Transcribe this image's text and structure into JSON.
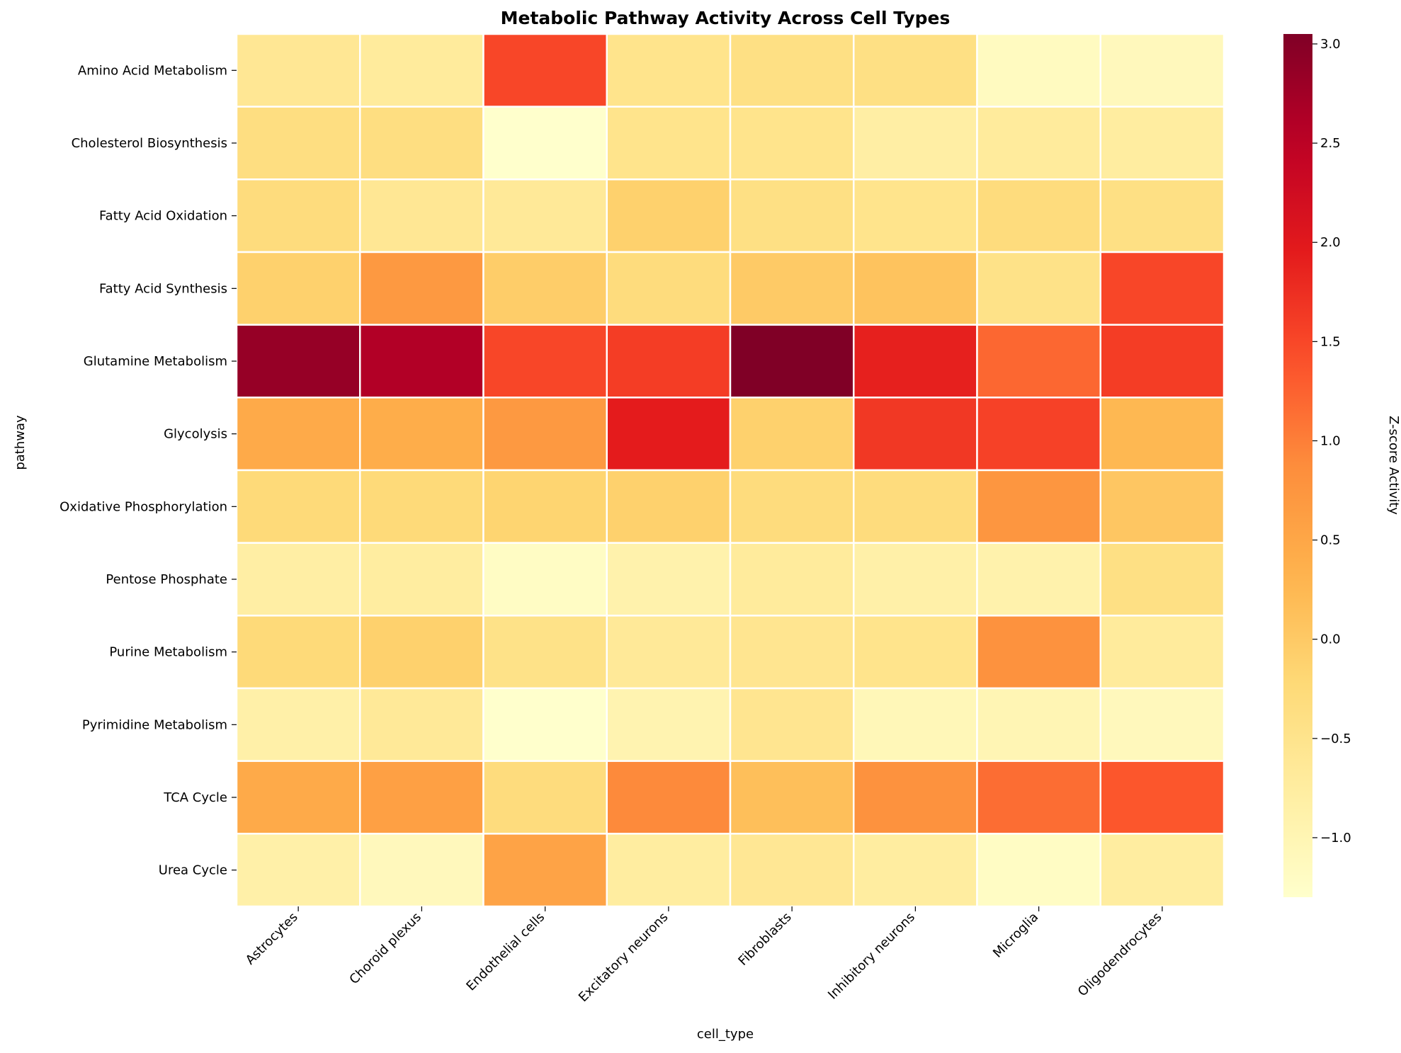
{
  "chart_data": {
    "type": "heatmap",
    "title": "Metabolic Pathway Activity Across Cell Types",
    "xlabel": "cell_type",
    "ylabel": "pathway",
    "colorbar_label": "Z-score Activity",
    "colormap": "YlOrRd",
    "color_range": [
      -1.3,
      3.05
    ],
    "colorbar_ticks": [
      3.0,
      2.5,
      2.0,
      1.5,
      1.0,
      0.5,
      0.0,
      -0.5,
      -1.0
    ],
    "colorbar_tick_labels": [
      "3.0",
      "2.5",
      "2.0",
      "1.5",
      "1.0",
      "0.5",
      "0.0",
      "−0.5",
      "−1.0"
    ],
    "x_categories": [
      "Astrocytes",
      "Choroid plexus",
      "Endothelial cells",
      "Excitatory neurons",
      "Fibroblasts",
      "Inhibitory neurons",
      "Microglia",
      "Oligodendrocytes"
    ],
    "y_categories": [
      "Amino Acid Metabolism",
      "Cholesterol Biosynthesis",
      "Fatty Acid Oxidation",
      "Fatty Acid Synthesis",
      "Glutamine Metabolism",
      "Glycolysis",
      "Oxidative Phosphorylation",
      "Pentose Phosphate",
      "Purine Metabolism",
      "Pyrimidine Metabolism",
      "TCA Cycle",
      "Urea Cycle"
    ],
    "values": [
      [
        -0.6,
        -0.7,
        1.5,
        -0.5,
        -0.4,
        -0.4,
        -1.15,
        -1.1
      ],
      [
        -0.35,
        -0.35,
        -1.3,
        -0.5,
        -0.5,
        -0.8,
        -0.7,
        -0.75
      ],
      [
        -0.3,
        -0.6,
        -0.65,
        -0.1,
        -0.4,
        -0.5,
        -0.3,
        -0.4
      ],
      [
        -0.1,
        0.7,
        -0.05,
        -0.3,
        0.0,
        0.1,
        -0.45,
        1.5
      ],
      [
        2.85,
        2.6,
        1.5,
        1.6,
        3.05,
        1.9,
        1.2,
        1.6
      ],
      [
        0.45,
        0.4,
        0.7,
        1.95,
        -0.1,
        1.65,
        1.55,
        0.25
      ],
      [
        -0.25,
        -0.25,
        -0.15,
        -0.1,
        -0.3,
        -0.3,
        0.75,
        0.05
      ],
      [
        -0.8,
        -0.75,
        -1.2,
        -0.9,
        -0.7,
        -0.85,
        -0.9,
        -0.4
      ],
      [
        -0.25,
        -0.1,
        -0.45,
        -0.65,
        -0.55,
        -0.5,
        0.8,
        -0.7
      ],
      [
        -0.85,
        -0.65,
        -1.3,
        -0.95,
        -0.55,
        -1.05,
        -1.0,
        -1.1
      ],
      [
        0.45,
        0.6,
        -0.3,
        0.9,
        0.15,
        0.8,
        1.15,
        1.35
      ],
      [
        -0.85,
        -1.1,
        0.55,
        -0.75,
        -0.6,
        -0.75,
        -1.2,
        -0.75
      ]
    ]
  }
}
